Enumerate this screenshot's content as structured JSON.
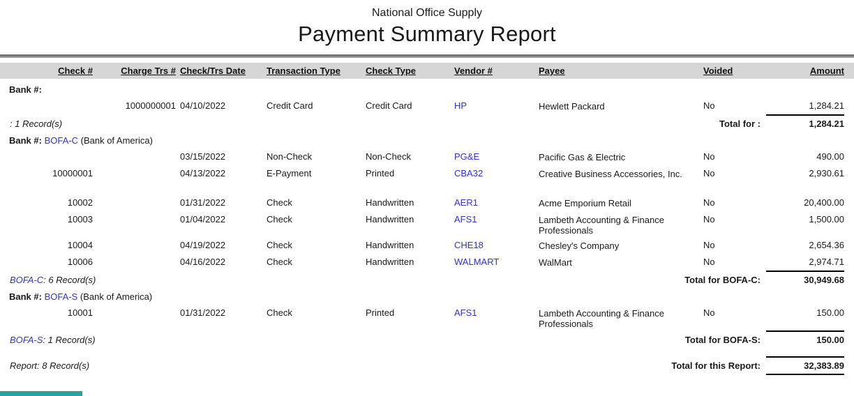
{
  "report": {
    "company": "National Office Supply",
    "title": "Payment Summary Report"
  },
  "columns": {
    "check_no": "Check #",
    "charge_trs_no": "Charge Trs #",
    "check_trs_date": "Check/Trs Date",
    "transaction_type": "Transaction Type",
    "check_type": "Check Type",
    "vendor_no": "Vendor #",
    "payee": "Payee",
    "voided": "Voided",
    "amount": "Amount"
  },
  "groups": [
    {
      "bank_label": "Bank #:",
      "bank_code": "",
      "bank_name": "",
      "rows": [
        {
          "check_no": "",
          "charge_trs_no": "1000000001",
          "date": "04/10/2022",
          "transaction_type": "Credit Card",
          "check_type": "Credit Card",
          "vendor_no": "HP",
          "payee": "Hewlett Packard",
          "voided": "No",
          "amount": "1,284.21"
        }
      ],
      "record_count_code": "",
      "record_count_text": ": 1 Record(s)",
      "total_label": "Total for :",
      "total_amount": "1,284.21"
    },
    {
      "bank_label": "Bank #:",
      "bank_code": "BOFA-C",
      "bank_name": "(Bank of America)",
      "rows": [
        {
          "check_no": "",
          "charge_trs_no": "",
          "date": "03/15/2022",
          "transaction_type": "Non-Check",
          "check_type": "Non-Check",
          "vendor_no": "PG&E",
          "payee": "Pacific Gas & Electric",
          "voided": "No",
          "amount": "490.00"
        },
        {
          "check_no": "10000001",
          "charge_trs_no": "",
          "date": "04/13/2022",
          "transaction_type": "E-Payment",
          "check_type": "Printed",
          "vendor_no": "CBA32",
          "payee": "Creative Business Accessories, Inc.",
          "voided": "No",
          "amount": "2,930.61"
        },
        {
          "check_no": "10002",
          "charge_trs_no": "",
          "date": "01/31/2022",
          "transaction_type": "Check",
          "check_type": "Handwritten",
          "vendor_no": "AER1",
          "payee": "Acme Emporium Retail",
          "voided": "No",
          "amount": "20,400.00"
        },
        {
          "check_no": "10003",
          "charge_trs_no": "",
          "date": "01/04/2022",
          "transaction_type": "Check",
          "check_type": "Handwritten",
          "vendor_no": "AFS1",
          "payee": "Lambeth Accounting & Finance Professionals",
          "voided": "No",
          "amount": "1,500.00"
        },
        {
          "check_no": "10004",
          "charge_trs_no": "",
          "date": "04/19/2022",
          "transaction_type": "Check",
          "check_type": "Handwritten",
          "vendor_no": "CHE18",
          "payee": "Chesley's Company",
          "voided": "No",
          "amount": "2,654.36"
        },
        {
          "check_no": "10006",
          "charge_trs_no": "",
          "date": "04/16/2022",
          "transaction_type": "Check",
          "check_type": "Handwritten",
          "vendor_no": "WALMART",
          "payee": "WalMart",
          "voided": "No",
          "amount": "2,974.71"
        }
      ],
      "record_count_code": "BOFA-C",
      "record_count_text": ": 6 Record(s)",
      "total_label": "Total for BOFA-C:",
      "total_amount": "30,949.68"
    },
    {
      "bank_label": "Bank #:",
      "bank_code": "BOFA-S",
      "bank_name": "(Bank of America)",
      "rows": [
        {
          "check_no": "10001",
          "charge_trs_no": "",
          "date": "01/31/2022",
          "transaction_type": "Check",
          "check_type": "Printed",
          "vendor_no": "AFS1",
          "payee": "Lambeth Accounting & Finance Professionals",
          "voided": "No",
          "amount": "150.00"
        }
      ],
      "record_count_code": "BOFA-S",
      "record_count_text": ": 1 Record(s)",
      "total_label": "Total for BOFA-S:",
      "total_amount": "150.00"
    }
  ],
  "report_summary": {
    "record_count_text": "Report: 8 Record(s)",
    "total_label": "Total for this Report:",
    "total_amount": "32,383.89"
  },
  "colors": {
    "link_blue": "#3232cd",
    "header_bar_gray": "#d6d6d6",
    "footer_bar_teal": "#2f9e9e"
  }
}
